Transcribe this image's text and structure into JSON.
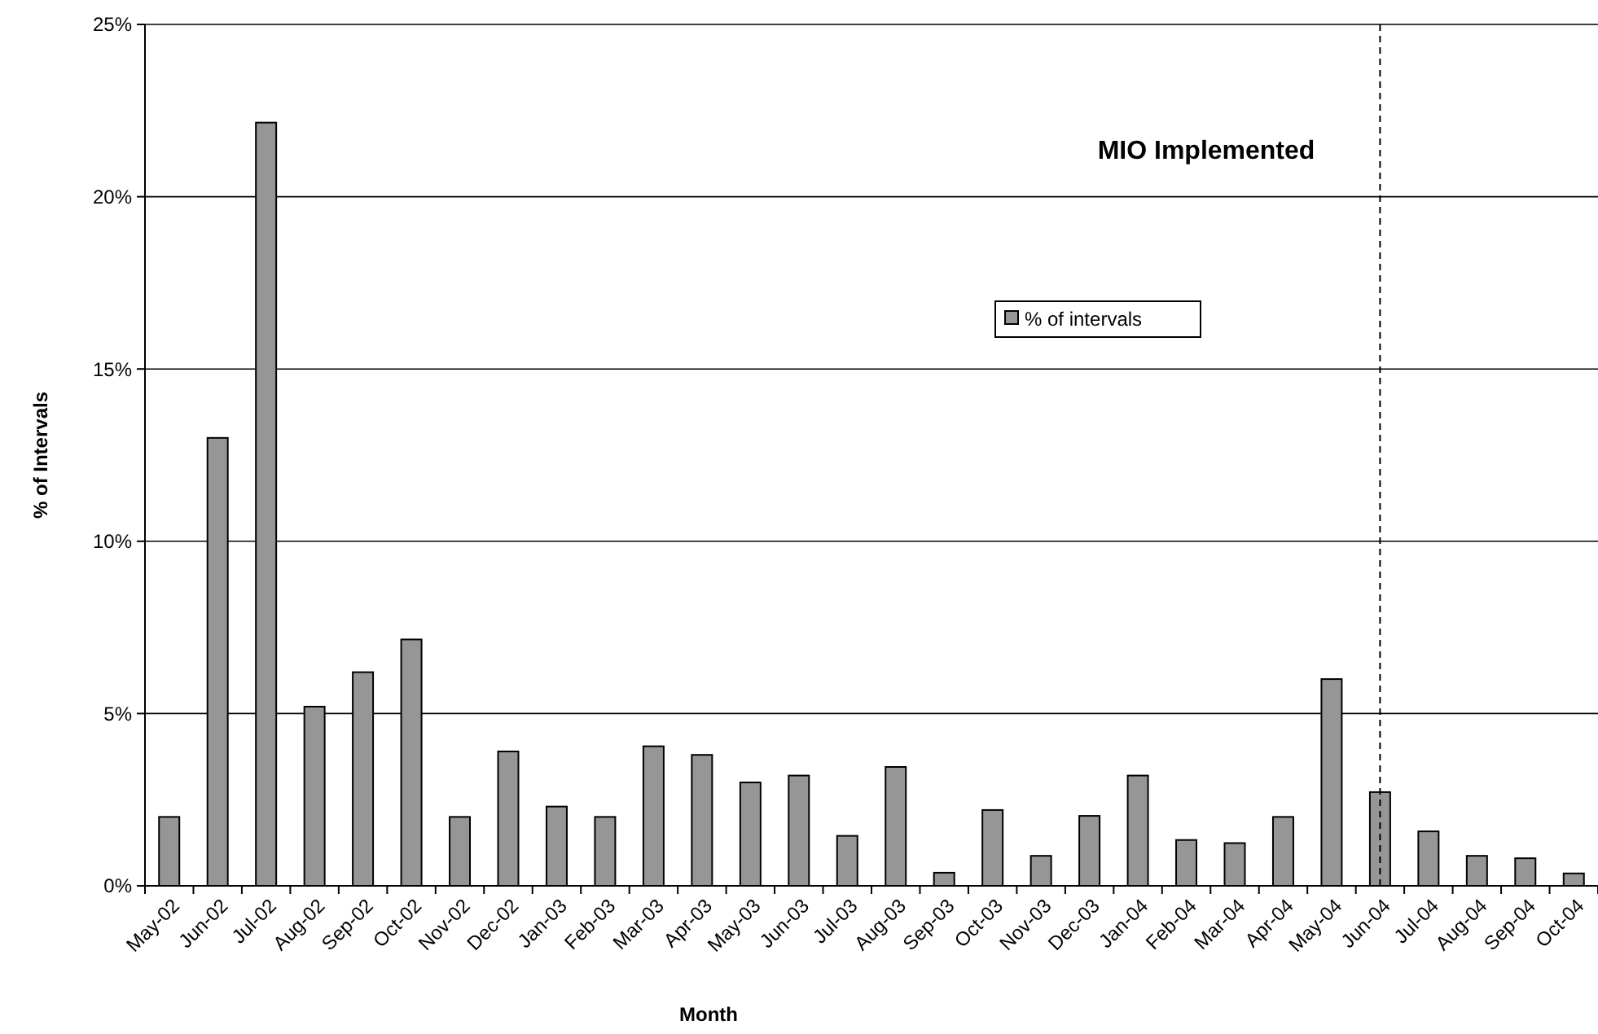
{
  "chart_data": {
    "type": "bar",
    "xlabel": "Month",
    "ylabel": "% of Intervals",
    "categories": [
      "May-02",
      "Jun-02",
      "Jul-02",
      "Aug-02",
      "Sep-02",
      "Oct-02",
      "Nov-02",
      "Dec-02",
      "Jan-03",
      "Feb-03",
      "Mar-03",
      "Apr-03",
      "May-03",
      "Jun-03",
      "Jul-03",
      "Aug-03",
      "Sep-03",
      "Oct-03",
      "Nov-03",
      "Dec-03",
      "Jan-04",
      "Feb-04",
      "Mar-04",
      "Apr-04",
      "May-04",
      "Jun-04",
      "Jul-04",
      "Aug-04",
      "Sep-04",
      "Oct-04"
    ],
    "series": [
      {
        "name": "% of intervals",
        "color": "#969696",
        "values": [
          2.0,
          13.0,
          22.15,
          5.2,
          6.2,
          7.15,
          2.0,
          3.9,
          2.3,
          2.0,
          4.05,
          3.8,
          3.0,
          3.2,
          1.45,
          3.45,
          0.38,
          2.2,
          0.87,
          2.03,
          3.2,
          1.33,
          1.24,
          2.0,
          6.0,
          2.72,
          1.58,
          0.87,
          0.8,
          0.36
        ]
      }
    ],
    "ylim": [
      0,
      25
    ],
    "yticks": [
      {
        "value": 0,
        "label": "0%"
      },
      {
        "value": 5,
        "label": "5%"
      },
      {
        "value": 10,
        "label": "10%"
      },
      {
        "value": 15,
        "label": "15%"
      },
      {
        "value": 20,
        "label": "20%"
      },
      {
        "value": 25,
        "label": "25%"
      }
    ],
    "grid": "y",
    "legend": "top right",
    "ref_lines": [
      {
        "axis": "x",
        "value": "Jun-04",
        "label": "MIO Implemented",
        "color": "#000000",
        "line_style": "dashed"
      }
    ]
  }
}
